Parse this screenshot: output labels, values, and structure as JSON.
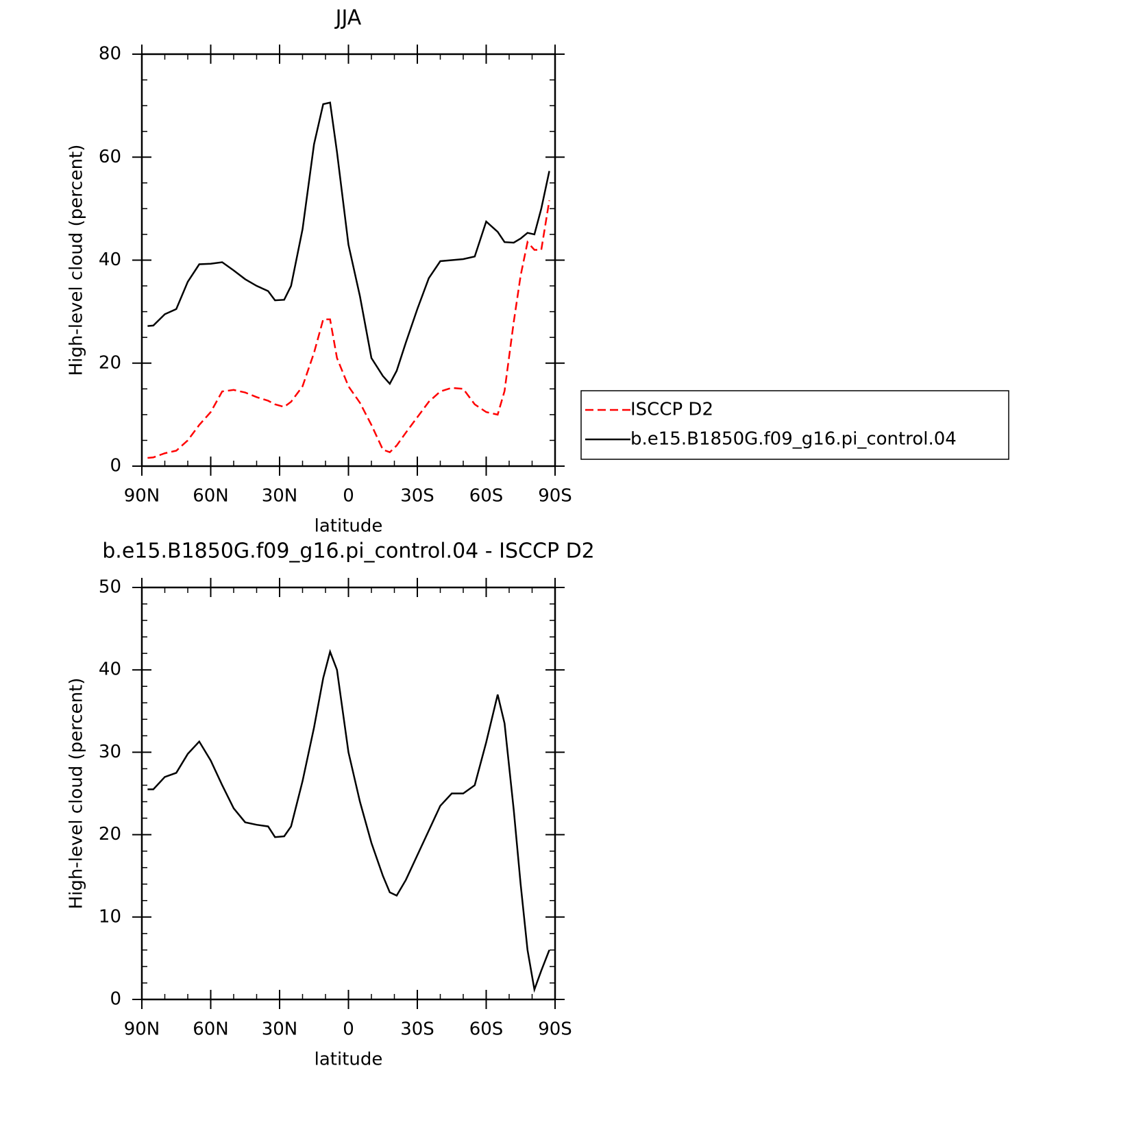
{
  "chart_data": [
    {
      "type": "line",
      "title": "JJA",
      "ylabel": "High-level cloud (percent)",
      "xlabel": "latitude",
      "x": [
        87.5,
        85,
        80,
        75,
        70,
        65,
        60,
        55,
        50,
        45,
        40,
        35,
        32,
        28,
        25,
        20,
        15,
        11,
        8,
        5,
        0,
        -5,
        -10,
        -15,
        -18,
        -21,
        -25,
        -30,
        -35,
        -40,
        -45,
        -50,
        -55,
        -60,
        -65,
        -68,
        -72,
        -75,
        -78,
        -81,
        -84,
        -87.5
      ],
      "series": [
        {
          "name": "ISCCP D2",
          "color": "#ff0000",
          "linestyle": "dashed",
          "values": [
            1.6,
            1.7,
            2.5,
            3.0,
            5.0,
            8.0,
            10.5,
            14.5,
            14.8,
            14.3,
            13.4,
            12.7,
            12.0,
            11.5,
            12.5,
            15.5,
            22,
            28.5,
            28.5,
            21,
            15.5,
            12.3,
            8,
            3.2,
            2.7,
            4,
            6.5,
            9.5,
            12.5,
            14.5,
            15.2,
            15.0,
            12,
            10.5,
            10,
            14.6,
            28,
            37,
            43.5,
            42,
            42,
            51.6
          ]
        },
        {
          "name": "b.e15.B1850G.f09_g16.pi_control.04",
          "color": "#000000",
          "linestyle": "solid",
          "values": [
            27.2,
            27.3,
            29.5,
            30.5,
            35.8,
            39.2,
            39.3,
            39.6,
            38.0,
            36.3,
            35.0,
            34.0,
            32.2,
            32.3,
            35.0,
            46.0,
            62.5,
            70.3,
            70.6,
            61.0,
            43.0,
            33.0,
            21.0,
            17.5,
            16.0,
            18.5,
            24,
            30.5,
            36.5,
            39.8,
            40,
            40.2,
            40.7,
            47.5,
            45.5,
            43.5,
            43.4,
            44.2,
            45.3,
            45,
            50,
            57.3
          ]
        }
      ],
      "xlim": [
        90,
        -90
      ],
      "xticks": [
        {
          "value": 90,
          "label": "90N"
        },
        {
          "value": 60,
          "label": "60N"
        },
        {
          "value": 30,
          "label": "30N"
        },
        0,
        {
          "value": -30,
          "label": "30S"
        },
        {
          "value": -60,
          "label": "60S"
        },
        {
          "value": -90,
          "label": "90S"
        }
      ],
      "ylim": [
        0,
        80
      ],
      "yticks": [
        0,
        20,
        40,
        60,
        80
      ],
      "legend": "right"
    },
    {
      "type": "line",
      "title": "b.e15.B1850G.f09_g16.pi_control.04 - ISCCP D2",
      "ylabel": "High-level cloud (percent)",
      "xlabel": "latitude",
      "x": [
        87.5,
        85,
        80,
        75,
        70,
        65,
        60,
        55,
        50,
        45,
        40,
        35,
        32,
        28,
        25,
        20,
        15,
        11,
        8,
        5,
        0,
        -5,
        -10,
        -15,
        -18,
        -21,
        -25,
        -30,
        -35,
        -40,
        -45,
        -50,
        -55,
        -60,
        -65,
        -68,
        -72,
        -75,
        -78,
        -81,
        -84,
        -87.5
      ],
      "series": [
        {
          "color": "#000000",
          "linestyle": "solid",
          "values": [
            25.5,
            25.5,
            27,
            27.5,
            29.8,
            31.3,
            29,
            26,
            23.2,
            21.5,
            21.2,
            21.0,
            19.7,
            19.8,
            21,
            26.5,
            33,
            39,
            42.2,
            40,
            30,
            24,
            19,
            15,
            13,
            12.6,
            14.5,
            17.5,
            20.5,
            23.5,
            25,
            25,
            26,
            31.2,
            37,
            33.5,
            23,
            14,
            6,
            1.2,
            3.5,
            6
          ]
        }
      ],
      "xlim": [
        90,
        -90
      ],
      "xticks": [
        {
          "value": 90,
          "label": "90N"
        },
        {
          "value": 60,
          "label": "60N"
        },
        {
          "value": 30,
          "label": "30N"
        },
        0,
        {
          "value": -30,
          "label": "30S"
        },
        {
          "value": -60,
          "label": "60S"
        },
        {
          "value": -90,
          "label": "90S"
        }
      ],
      "ylim": [
        0,
        50
      ],
      "yticks": [
        0,
        10,
        20,
        30,
        40,
        50
      ]
    }
  ]
}
